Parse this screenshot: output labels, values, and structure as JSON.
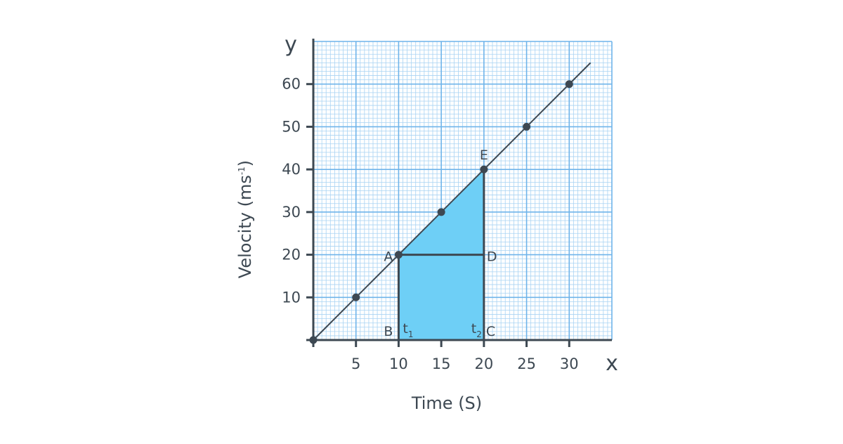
{
  "chart_data": {
    "type": "line",
    "xlabel": "Time (S)",
    "ylabel_main": "Velocity (ms",
    "ylabel_sup": "-1",
    "ylabel_close": ")",
    "x_axis_letter": "x",
    "y_axis_letter": "y",
    "xlim": [
      0,
      35
    ],
    "ylim": [
      0,
      70
    ],
    "x_ticks": [
      5,
      10,
      15,
      20,
      25,
      30
    ],
    "y_ticks": [
      10,
      20,
      30,
      40,
      50,
      60
    ],
    "grid": true,
    "series": [
      {
        "x": [
          0,
          5,
          10,
          15,
          20,
          25,
          30
        ],
        "y": [
          0,
          10,
          20,
          30,
          40,
          50,
          60
        ]
      }
    ],
    "line_extent": {
      "x": [
        0,
        32.5
      ],
      "y": [
        0,
        65
      ]
    },
    "shaded_region": {
      "color": "#6ecff6",
      "polygon": [
        [
          10,
          0
        ],
        [
          20,
          0
        ],
        [
          20,
          40
        ],
        [
          10,
          20
        ]
      ]
    },
    "annotations": [
      {
        "id": "A",
        "text": "A",
        "x": 10,
        "y": 20
      },
      {
        "id": "B",
        "text": "B",
        "x": 10,
        "y": 0
      },
      {
        "id": "C",
        "text": "C",
        "x": 20,
        "y": 0
      },
      {
        "id": "D",
        "text": "D",
        "x": 20,
        "y": 20
      },
      {
        "id": "E",
        "text": "E",
        "x": 20,
        "y": 40
      },
      {
        "id": "t1",
        "text": "t",
        "sub": "1",
        "x": 10,
        "y": 0
      },
      {
        "id": "t2",
        "text": "t",
        "sub": "2",
        "x": 20,
        "y": 0
      }
    ]
  },
  "colors": {
    "grid_minor": "#a9d3f3",
    "grid_major": "#6fb4ea",
    "axis": "#3d4852",
    "line": "#3d4852",
    "point": "#3d4852",
    "fill": "#6ecff6"
  }
}
